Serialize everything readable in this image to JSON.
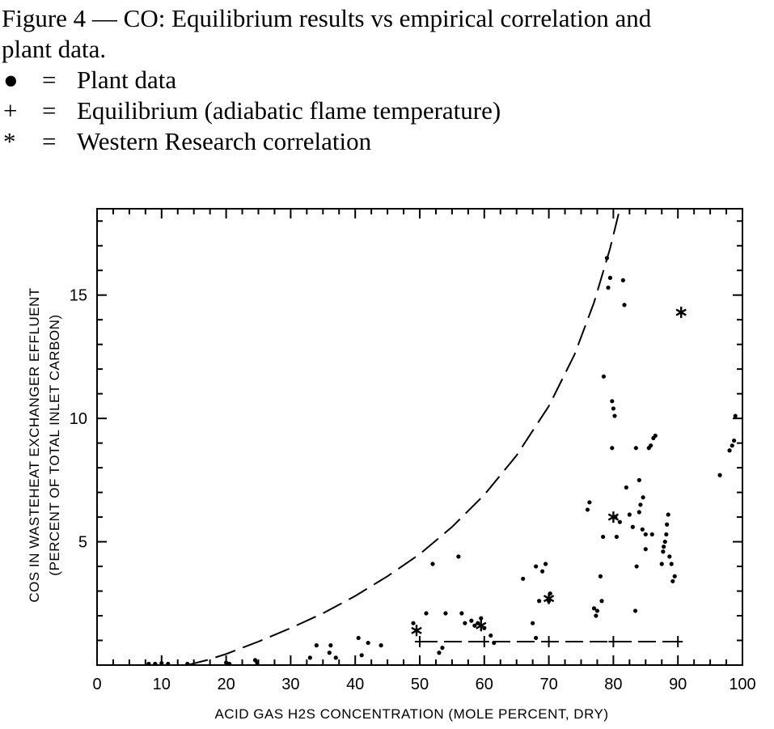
{
  "caption": {
    "line1": "Figure 4 — CO: Equilibrium results vs empirical correlation and",
    "line2": "plant data.",
    "legend": [
      {
        "symbol": "●",
        "equals": "=",
        "text": "Plant data"
      },
      {
        "symbol": "+",
        "equals": "=",
        "text": "Equilibrium (adiabatic flame temperature)"
      },
      {
        "symbol": "*",
        "equals": "=",
        "text": "Western Research correlation"
      }
    ]
  },
  "chart_data": {
    "type": "scatter",
    "xlabel": "ACID GAS H2S CONCENTRATION (MOLE PERCENT, DRY)",
    "ylabel_line1": "COS IN WASTEHEAT EXCHANGER EFFLUENT",
    "ylabel_line2": "(PERCENT OF TOTAL INLET CARBON)",
    "xlim": [
      0,
      100
    ],
    "ylim": [
      0,
      18.5
    ],
    "xticks": [
      0,
      10,
      20,
      30,
      40,
      50,
      60,
      70,
      80,
      90,
      100
    ],
    "xtick_labels": [
      "0",
      "10",
      "20",
      "30",
      "40",
      "50",
      "60",
      "70",
      "80",
      "90",
      "100"
    ],
    "yticks": [
      5,
      10,
      15
    ],
    "ytick_labels": [
      "5",
      "10",
      "15"
    ],
    "series": [
      {
        "marker": "dot",
        "points": [
          [
            8,
            0.05
          ],
          [
            9,
            0.05
          ],
          [
            10,
            0.08
          ],
          [
            11,
            0.05
          ],
          [
            14,
            0.05
          ],
          [
            20,
            0.1
          ],
          [
            20.5,
            0.05
          ],
          [
            24.5,
            0.2
          ],
          [
            24.8,
            0.1
          ],
          [
            33,
            0.3
          ],
          [
            34,
            0.8
          ],
          [
            36,
            0.5
          ],
          [
            36.2,
            0.8
          ],
          [
            37,
            0.3
          ],
          [
            40.5,
            1.1
          ],
          [
            41,
            0.4
          ],
          [
            42,
            0.9
          ],
          [
            44,
            0.8
          ],
          [
            49,
            1.7
          ],
          [
            49.5,
            1.4
          ],
          [
            51,
            2.1
          ],
          [
            53,
            0.5
          ],
          [
            53.5,
            0.7
          ],
          [
            54,
            2.1
          ],
          [
            52,
            4.1
          ],
          [
            56,
            4.4
          ],
          [
            56.5,
            2.1
          ],
          [
            57,
            1.7
          ],
          [
            58,
            1.8
          ],
          [
            58.5,
            1.6
          ],
          [
            59,
            1.7
          ],
          [
            59.5,
            1.9
          ],
          [
            60,
            1.5
          ],
          [
            61,
            1.2
          ],
          [
            61.5,
            0.9
          ],
          [
            66,
            3.5
          ],
          [
            67.5,
            1.7
          ],
          [
            68,
            1.1
          ],
          [
            68.5,
            2.6
          ],
          [
            68,
            4.0
          ],
          [
            69,
            3.8
          ],
          [
            69.5,
            4.1
          ],
          [
            70,
            2.6
          ],
          [
            70.2,
            2.9
          ],
          [
            76,
            6.3
          ],
          [
            76.3,
            6.6
          ],
          [
            77,
            2.3
          ],
          [
            77.3,
            2.0
          ],
          [
            77.5,
            2.2
          ],
          [
            78,
            3.6
          ],
          [
            78.2,
            2.6
          ],
          [
            78.4,
            5.2
          ],
          [
            78.5,
            11.7
          ],
          [
            79,
            16.5
          ],
          [
            79.2,
            15.3
          ],
          [
            79.5,
            15.7
          ],
          [
            79.8,
            10.7
          ],
          [
            79.8,
            8.8
          ],
          [
            80,
            10.4
          ],
          [
            80.2,
            10.1
          ],
          [
            80.3,
            6.0
          ],
          [
            80.5,
            5.2
          ],
          [
            81,
            5.8
          ],
          [
            81.5,
            15.6
          ],
          [
            81.7,
            14.6
          ],
          [
            82,
            7.2
          ],
          [
            82.5,
            6.1
          ],
          [
            83,
            5.6
          ],
          [
            83.4,
            2.2
          ],
          [
            83.5,
            8.8
          ],
          [
            83.6,
            4.0
          ],
          [
            84,
            6.2
          ],
          [
            84,
            7.5
          ],
          [
            84.2,
            6.5
          ],
          [
            84.5,
            5.5
          ],
          [
            84.6,
            6.8
          ],
          [
            85,
            5.3
          ],
          [
            85,
            4.7
          ],
          [
            85.5,
            8.8
          ],
          [
            85.8,
            8.9
          ],
          [
            86,
            5.3
          ],
          [
            86.2,
            9.2
          ],
          [
            86.5,
            9.3
          ],
          [
            87.5,
            4.1
          ],
          [
            87.7,
            4.6
          ],
          [
            87.8,
            4.8
          ],
          [
            88,
            5.0
          ],
          [
            88.2,
            5.3
          ],
          [
            88.3,
            5.7
          ],
          [
            88.5,
            6.1
          ],
          [
            88.7,
            4.4
          ],
          [
            89,
            4.1
          ],
          [
            89.2,
            3.4
          ],
          [
            89.5,
            3.6
          ],
          [
            96.5,
            7.7
          ],
          [
            98,
            8.7
          ],
          [
            98.4,
            8.9
          ],
          [
            98.7,
            9.1
          ],
          [
            98.9,
            10.1
          ]
        ]
      },
      {
        "marker": "plus",
        "points": [
          [
            50,
            0.95
          ],
          [
            60,
            0.95
          ],
          [
            70,
            0.95
          ],
          [
            80,
            0.95
          ],
          [
            90,
            0.95
          ]
        ]
      },
      {
        "marker": "star",
        "points": [
          [
            49.5,
            1.4
          ],
          [
            59.5,
            1.6
          ],
          [
            70,
            2.7
          ],
          [
            80,
            6.0
          ],
          [
            90.5,
            14.3
          ]
        ]
      }
    ],
    "lines": [
      {
        "style": "dashed",
        "points": [
          [
            14,
            0
          ],
          [
            17,
            0.2
          ],
          [
            20,
            0.45
          ],
          [
            25,
            0.95
          ],
          [
            30,
            1.5
          ],
          [
            35,
            2.1
          ],
          [
            40,
            2.8
          ],
          [
            45,
            3.6
          ],
          [
            50,
            4.5
          ],
          [
            55,
            5.6
          ],
          [
            60,
            6.9
          ],
          [
            65,
            8.5
          ],
          [
            70,
            10.5
          ],
          [
            74,
            12.6
          ],
          [
            77,
            14.7
          ],
          [
            79.5,
            16.9
          ],
          [
            81,
            18.5
          ]
        ]
      },
      {
        "style": "dashed",
        "points": [
          [
            50,
            0.95
          ],
          [
            90,
            0.95
          ]
        ]
      }
    ]
  }
}
